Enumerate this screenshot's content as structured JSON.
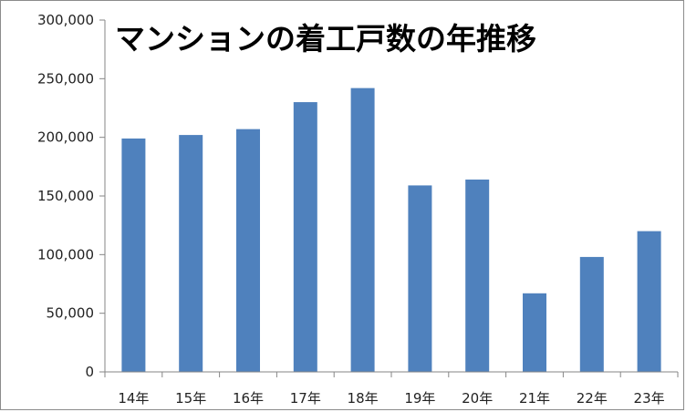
{
  "chart_data": {
    "type": "bar",
    "title": "マンションの着工戸数の年推移",
    "categories": [
      "14年",
      "15年",
      "16年",
      "17年",
      "18年",
      "19年",
      "20年",
      "21年",
      "22年",
      "23年"
    ],
    "values": [
      199000,
      202000,
      207000,
      230000,
      242000,
      159000,
      164000,
      67000,
      98000,
      120000
    ],
    "yticks": [
      "0",
      "50,000",
      "100,000",
      "150,000",
      "200,000",
      "250,000",
      "300,000"
    ],
    "ylim": [
      0,
      300000
    ],
    "xlabel": "",
    "ylabel": "",
    "grid": false,
    "legend": "none",
    "bar_color": "#4f81bd",
    "axis_color": "#868686"
  }
}
